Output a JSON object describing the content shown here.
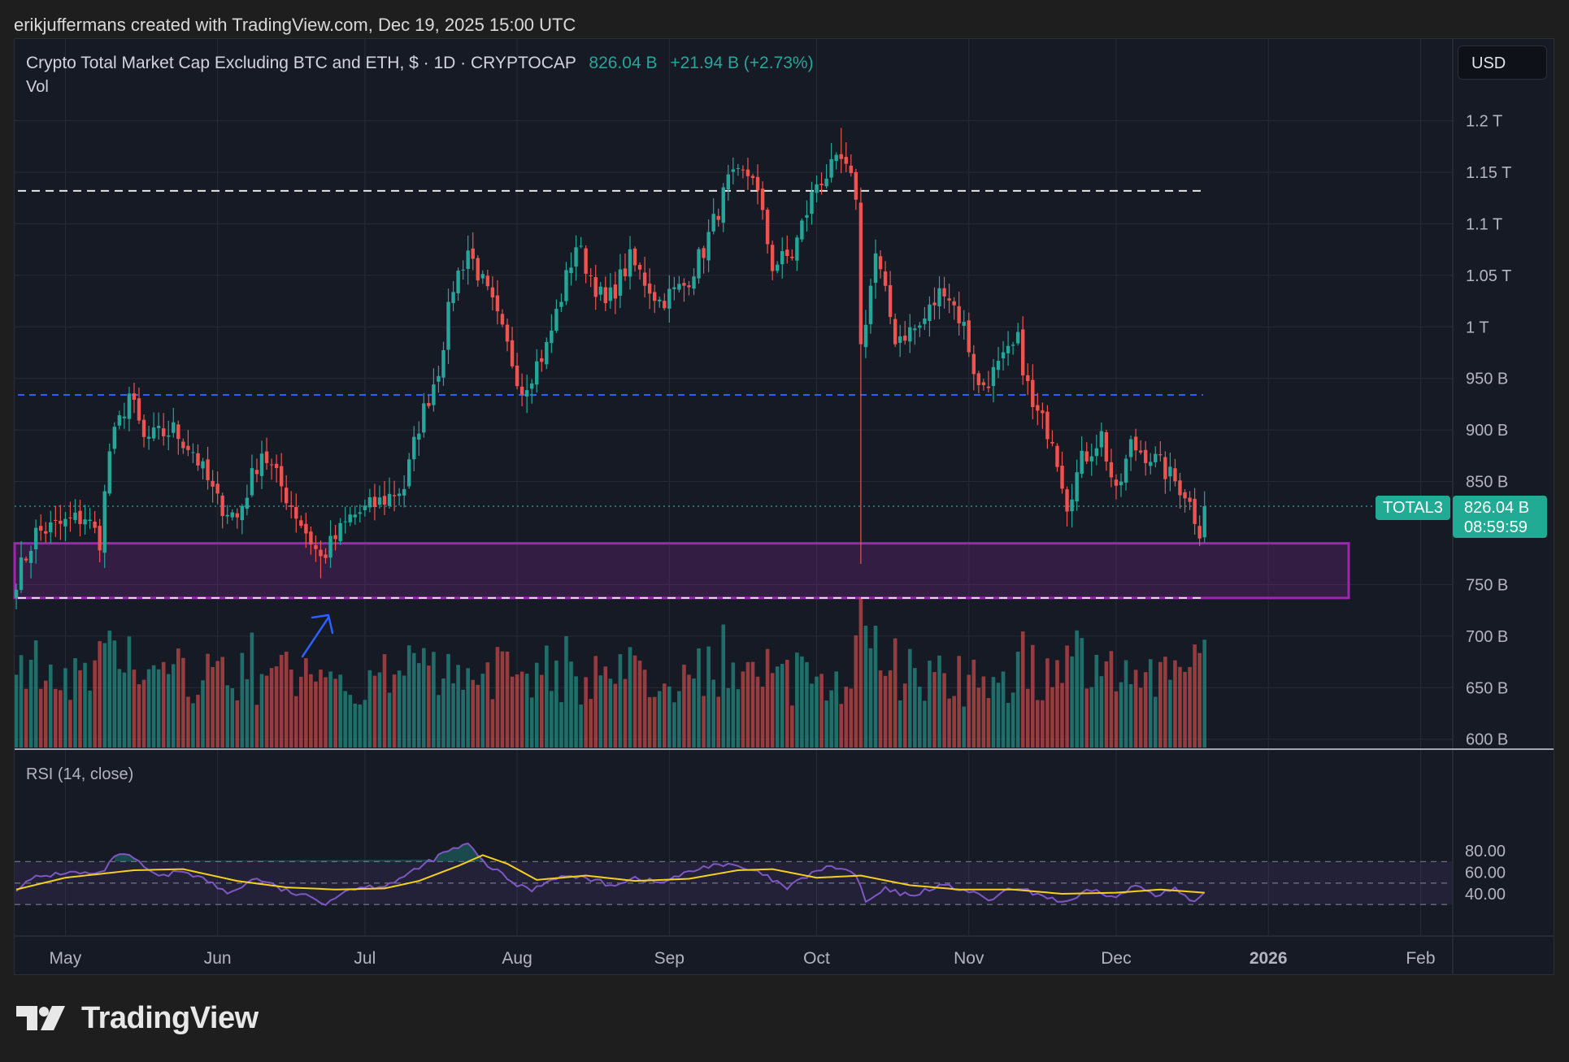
{
  "header": {
    "credit": "erikjuffermans created with TradingView.com, Dec 19, 2025 15:00 UTC"
  },
  "legend": {
    "symbol": "Crypto Total Market Cap Excluding BTC and ETH, $ · 1D · CRYPTOCAP",
    "last": "826.04 B",
    "change": "+21.94 B (+2.73%)",
    "volume_label": "Vol"
  },
  "rsi_panel": {
    "label": "RSI (14, close)"
  },
  "currency_button": "USD",
  "price_tag": {
    "symbol": "TOTAL3",
    "value": "826.04 B",
    "countdown": "08:59:59"
  },
  "footer": {
    "brand": "TradingView"
  },
  "colors": {
    "up": "#26a69a",
    "down": "#ef5350",
    "rsi": "#7e57c2",
    "rsi_ma": "#f5d01e",
    "zone": "#9c27b0",
    "blue_line": "#2962ff",
    "arrow": "#2962ff"
  },
  "chart_data": [
    {
      "type": "candlestick",
      "title": "Crypto Total Market Cap Excluding BTC and ETH, $ · 1D · CRYPTOCAP",
      "x_tick_labels": [
        "May",
        "Jun",
        "Jul",
        "Aug",
        "Sep",
        "Oct",
        "Nov",
        "Dec",
        "2026",
        "Feb"
      ],
      "y_tick_labels": [
        "1.2 T",
        "1.15 T",
        "1.1 T",
        "1.05 T",
        "1 T",
        "950 B",
        "900 B",
        "850 B",
        "750 B",
        "700 B",
        "650 B",
        "600 B"
      ],
      "y_unit": "USD billions",
      "ylim": [
        600,
        1215
      ],
      "grid": true,
      "date_range": [
        "2025-04-21",
        "2025-12-19"
      ],
      "reference_lines": [
        {
          "style": "dashed-white",
          "value": 1132
        },
        {
          "style": "dashed-blue",
          "value": 934
        },
        {
          "style": "dashed-white",
          "value": 737
        },
        {
          "style": "dotted-teal",
          "value": 826.04
        }
      ],
      "support_zone": {
        "from": 737,
        "to": 790,
        "color": "#9c27b0"
      },
      "annotation": "blue arrow pointing up at June low",
      "close_keyframes": [
        [
          "2025-04-21",
          756
        ],
        [
          "2025-04-25",
          800
        ],
        [
          "2025-05-05",
          816
        ],
        [
          "2025-05-08",
          793
        ],
        [
          "2025-05-10",
          880
        ],
        [
          "2025-05-14",
          935
        ],
        [
          "2025-05-17",
          890
        ],
        [
          "2025-05-23",
          900
        ],
        [
          "2025-05-27",
          880
        ],
        [
          "2025-06-01",
          830
        ],
        [
          "2025-06-05",
          815
        ],
        [
          "2025-06-10",
          880
        ],
        [
          "2025-06-14",
          845
        ],
        [
          "2025-06-22",
          775
        ],
        [
          "2025-06-28",
          815
        ],
        [
          "2025-07-04",
          830
        ],
        [
          "2025-07-09",
          845
        ],
        [
          "2025-07-12",
          905
        ],
        [
          "2025-07-16",
          960
        ],
        [
          "2025-07-19",
          1040
        ],
        [
          "2025-07-22",
          1075
        ],
        [
          "2025-07-27",
          1020
        ],
        [
          "2025-08-02",
          940
        ],
        [
          "2025-08-07",
          980
        ],
        [
          "2025-08-13",
          1080
        ],
        [
          "2025-08-19",
          1020
        ],
        [
          "2025-08-24",
          1065
        ],
        [
          "2025-08-30",
          1025
        ],
        [
          "2025-09-04",
          1040
        ],
        [
          "2025-09-08",
          1075
        ],
        [
          "2025-09-13",
          1140
        ],
        [
          "2025-09-18",
          1150
        ],
        [
          "2025-09-22",
          1060
        ],
        [
          "2025-09-26",
          1070
        ],
        [
          "2025-10-01",
          1140
        ],
        [
          "2025-10-06",
          1160
        ],
        [
          "2025-10-09",
          1130
        ],
        [
          "2025-10-10",
          980
        ],
        [
          "2025-10-13",
          1070
        ],
        [
          "2025-10-17",
          990
        ],
        [
          "2025-10-22",
          1000
        ],
        [
          "2025-10-27",
          1040
        ],
        [
          "2025-10-31",
          1000
        ],
        [
          "2025-11-03",
          940
        ],
        [
          "2025-11-07",
          960
        ],
        [
          "2025-11-11",
          985
        ],
        [
          "2025-11-14",
          920
        ],
        [
          "2025-11-18",
          895
        ],
        [
          "2025-11-21",
          830
        ],
        [
          "2025-11-24",
          870
        ],
        [
          "2025-11-28",
          895
        ],
        [
          "2025-12-01",
          835
        ],
        [
          "2025-12-04",
          885
        ],
        [
          "2025-12-08",
          875
        ],
        [
          "2025-12-11",
          860
        ],
        [
          "2025-12-15",
          840
        ],
        [
          "2025-12-18",
          804
        ],
        [
          "2025-12-19",
          826.04
        ]
      ],
      "notable_wicks": [
        {
          "date": "2025-06-22",
          "low": 756
        },
        {
          "date": "2025-10-06",
          "high": 1193
        },
        {
          "date": "2025-10-10",
          "low": 770
        }
      ]
    },
    {
      "type": "bar",
      "name": "Vol",
      "note": "daily volume histogram, colored by candle direction, no axis scale shown"
    },
    {
      "type": "line",
      "title": "RSI (14, close)",
      "y_tick_labels": [
        "80.00",
        "60.00",
        "40.00"
      ],
      "ylim": [
        22,
        88
      ],
      "bands": {
        "upper": 70,
        "middle": 50,
        "lower": 30
      },
      "keyframes": [
        [
          "2025-04-21",
          45
        ],
        [
          "2025-04-25",
          55
        ],
        [
          "2025-05-01",
          60
        ],
        [
          "2025-05-08",
          58
        ],
        [
          "2025-05-12",
          78
        ],
        [
          "2025-05-15",
          72
        ],
        [
          "2025-05-20",
          55
        ],
        [
          "2025-05-25",
          62
        ],
        [
          "2025-05-30",
          52
        ],
        [
          "2025-06-03",
          40
        ],
        [
          "2025-06-09",
          55
        ],
        [
          "2025-06-14",
          44
        ],
        [
          "2025-06-23",
          32
        ],
        [
          "2025-06-28",
          45
        ],
        [
          "2025-07-05",
          48
        ],
        [
          "2025-07-10",
          58
        ],
        [
          "2025-07-14",
          70
        ],
        [
          "2025-07-18",
          80
        ],
        [
          "2025-07-22",
          86
        ],
        [
          "2025-07-25",
          70
        ],
        [
          "2025-08-01",
          48
        ],
        [
          "2025-08-04",
          44
        ],
        [
          "2025-08-09",
          56
        ],
        [
          "2025-08-15",
          55
        ],
        [
          "2025-08-20",
          48
        ],
        [
          "2025-08-25",
          55
        ],
        [
          "2025-08-30",
          50
        ],
        [
          "2025-09-05",
          60
        ],
        [
          "2025-09-10",
          68
        ],
        [
          "2025-09-15",
          65
        ],
        [
          "2025-09-20",
          58
        ],
        [
          "2025-09-25",
          45
        ],
        [
          "2025-10-01",
          62
        ],
        [
          "2025-10-05",
          65
        ],
        [
          "2025-10-09",
          58
        ],
        [
          "2025-10-11",
          32
        ],
        [
          "2025-10-15",
          44
        ],
        [
          "2025-10-20",
          38
        ],
        [
          "2025-10-26",
          48
        ],
        [
          "2025-10-31",
          44
        ],
        [
          "2025-11-05",
          34
        ],
        [
          "2025-11-10",
          45
        ],
        [
          "2025-11-15",
          40
        ],
        [
          "2025-11-21",
          31
        ],
        [
          "2025-11-26",
          44
        ],
        [
          "2025-12-01",
          36
        ],
        [
          "2025-12-05",
          48
        ],
        [
          "2025-12-09",
          40
        ],
        [
          "2025-12-13",
          44
        ],
        [
          "2025-12-17",
          31
        ],
        [
          "2025-12-19",
          40
        ]
      ],
      "ma_keyframes": [
        [
          "2025-04-21",
          44
        ],
        [
          "2025-05-01",
          55
        ],
        [
          "2025-05-15",
          62
        ],
        [
          "2025-05-25",
          63
        ],
        [
          "2025-06-05",
          52
        ],
        [
          "2025-06-15",
          46
        ],
        [
          "2025-06-25",
          44
        ],
        [
          "2025-07-05",
          45
        ],
        [
          "2025-07-12",
          52
        ],
        [
          "2025-07-20",
          66
        ],
        [
          "2025-07-25",
          76
        ],
        [
          "2025-07-30",
          68
        ],
        [
          "2025-08-05",
          53
        ],
        [
          "2025-08-15",
          57
        ],
        [
          "2025-08-25",
          52
        ],
        [
          "2025-09-05",
          54
        ],
        [
          "2025-09-15",
          62
        ],
        [
          "2025-09-22",
          63
        ],
        [
          "2025-10-01",
          55
        ],
        [
          "2025-10-10",
          57
        ],
        [
          "2025-10-20",
          48
        ],
        [
          "2025-10-30",
          44
        ],
        [
          "2025-11-10",
          44
        ],
        [
          "2025-11-20",
          40
        ],
        [
          "2025-12-01",
          41
        ],
        [
          "2025-12-10",
          44
        ],
        [
          "2025-12-19",
          41
        ]
      ]
    }
  ]
}
